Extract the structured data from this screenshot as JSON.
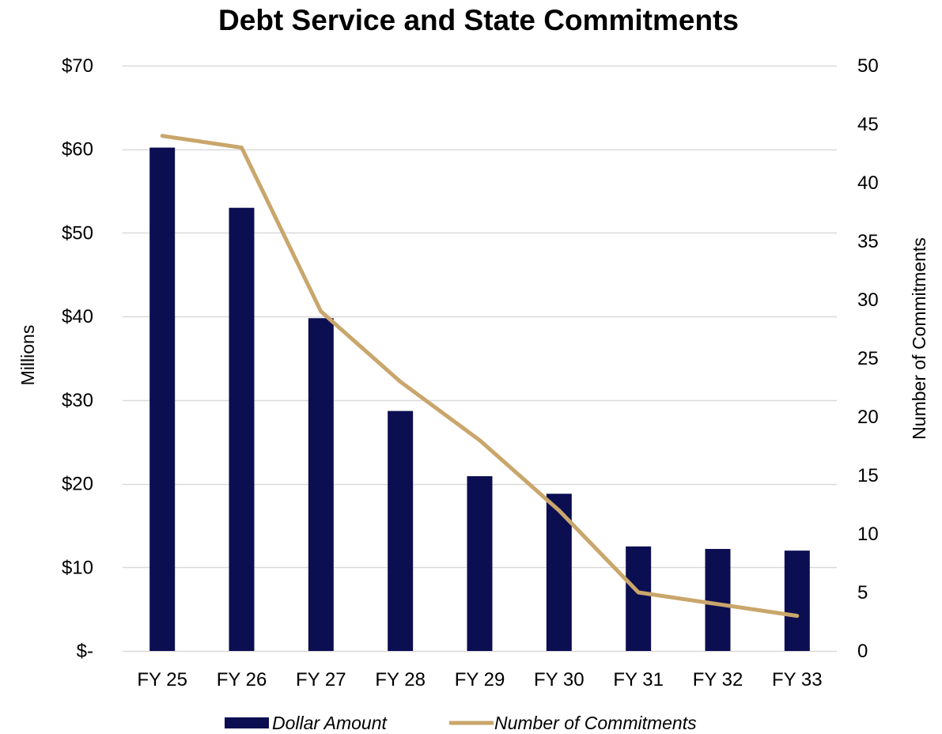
{
  "chart_data": {
    "type": "bar",
    "title": "Debt Service and State Commitments",
    "categories": [
      "FY 25",
      "FY 26",
      "FY 27",
      "FY 28",
      "FY 29",
      "FY 30",
      "FY 31",
      "FY 32",
      "FY 33"
    ],
    "series": [
      {
        "name": "Dollar Amount",
        "type": "bar",
        "axis": "left",
        "color": "#0c0e52",
        "values": [
          60.2,
          53.0,
          39.8,
          28.7,
          20.9,
          18.8,
          12.5,
          12.2,
          12.0
        ]
      },
      {
        "name": "Number of Commitments",
        "type": "line",
        "axis": "right",
        "color": "#c9a66b",
        "values": [
          44,
          43,
          29,
          23,
          18,
          12,
          5,
          4,
          3
        ]
      }
    ],
    "ylabel": "Millions",
    "ylabel_right": "Number of Commitments",
    "xlabel": "",
    "ylim": [
      0,
      70
    ],
    "ylim_right": [
      0,
      50
    ],
    "yticks_left": [
      {
        "value": 0,
        "label": "$-"
      },
      {
        "value": 10,
        "label": "$10"
      },
      {
        "value": 20,
        "label": "$20"
      },
      {
        "value": 30,
        "label": "$30"
      },
      {
        "value": 40,
        "label": "$40"
      },
      {
        "value": 50,
        "label": "$50"
      },
      {
        "value": 60,
        "label": "$60"
      },
      {
        "value": 70,
        "label": "$70"
      }
    ],
    "yticks_right": [
      {
        "value": 0,
        "label": "0"
      },
      {
        "value": 5,
        "label": "5"
      },
      {
        "value": 10,
        "label": "10"
      },
      {
        "value": 15,
        "label": "15"
      },
      {
        "value": 20,
        "label": "20"
      },
      {
        "value": 25,
        "label": "25"
      },
      {
        "value": 30,
        "label": "30"
      },
      {
        "value": 35,
        "label": "35"
      },
      {
        "value": 40,
        "label": "40"
      },
      {
        "value": 45,
        "label": "45"
      },
      {
        "value": 50,
        "label": "50"
      }
    ],
    "grid": true,
    "gridline_color": "#d9d9d9",
    "legend": "bottom"
  }
}
